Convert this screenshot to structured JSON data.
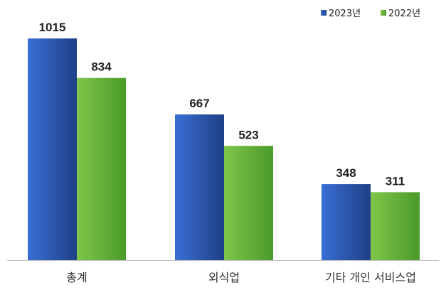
{
  "chart_data": {
    "type": "bar",
    "categories": [
      "총계",
      "외식업",
      "기타 개인 서비스업"
    ],
    "series": [
      {
        "name": "2023년",
        "values": [
          1015,
          667,
          348
        ]
      },
      {
        "name": "2022년",
        "values": [
          834,
          523,
          311
        ]
      }
    ],
    "ylim": [
      0,
      1100
    ],
    "grid": false,
    "legend_position": "top-right",
    "data_labels": true,
    "colors": {
      "2023년": [
        "#3a6fd6",
        "#1f3f85"
      ],
      "2022년": [
        "#7fc64a",
        "#4a9a2a"
      ],
      "baseline": "#bfbfbf"
    }
  }
}
